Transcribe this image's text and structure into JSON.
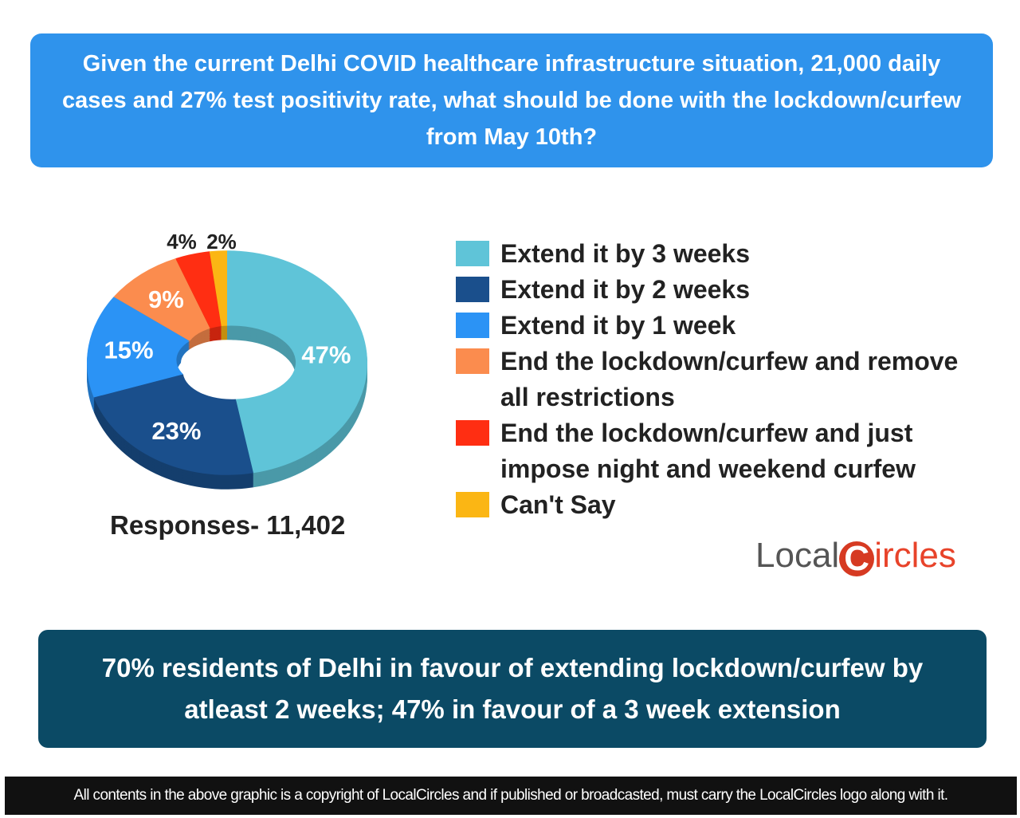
{
  "question": "Given the current Delhi COVID healthcare infrastructure situation, 21,000 daily cases and 27% test positivity rate, what should be done with the lockdown/curfew from May 10th?",
  "chart_data": {
    "type": "pie",
    "donut": true,
    "categories": [
      "Extend it by 3 weeks",
      "Extend it by 2 weeks",
      "Extend it by 1 week",
      "End the lockdown/curfew and remove all restrictions",
      "End the lockdown/curfew and just impose night and weekend curfew",
      "Can't Say"
    ],
    "values": [
      47,
      23,
      15,
      9,
      4,
      2
    ],
    "labels": [
      "47%",
      "23%",
      "15%",
      "9%",
      "4%",
      "2%"
    ],
    "colors": [
      "#5fc4d8",
      "#1a4f8c",
      "#2b93f5",
      "#fb8c4e",
      "#ff2e12",
      "#fbb614"
    ],
    "legend_position": "right"
  },
  "responses": "Responses- 11,402",
  "logo": {
    "text_a": "Local",
    "text_b": "C",
    "text_c": "ircles"
  },
  "summary": "70% residents of Delhi in favour of extending lockdown/curfew by atleast 2 weeks; 47% in favour of a 3 week extension",
  "footer": "All contents in the above graphic is a copyright of LocalCircles and if published or broadcasted, must carry the LocalCircles logo along with it."
}
